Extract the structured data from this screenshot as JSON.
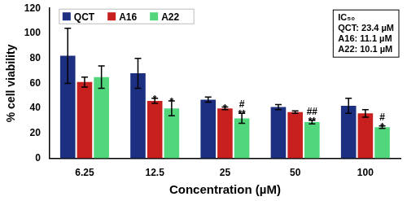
{
  "chart_data": {
    "type": "bar",
    "y_label": "% cell viability",
    "x_label": "Concentration (µM)",
    "categories": [
      "6.25",
      "12.5",
      "25",
      "50",
      "100"
    ],
    "series": [
      {
        "name": "QCT",
        "color": "#1c2f80",
        "values": [
          82,
          68,
          47,
          41,
          42
        ],
        "errors": [
          22,
          12,
          2,
          2,
          6
        ],
        "significance": [
          null,
          null,
          null,
          null,
          null
        ]
      },
      {
        "name": "A16",
        "color": "#c8201e",
        "values": [
          61,
          46,
          40,
          37,
          36
        ],
        "errors": [
          4,
          2,
          1,
          1,
          3
        ],
        "significance": [
          null,
          [
            "*"
          ],
          [
            "*"
          ],
          null,
          null
        ]
      },
      {
        "name": "A22",
        "color": "#52d67c",
        "values": [
          65,
          40,
          32,
          29,
          25
        ],
        "errors": [
          9,
          6,
          4,
          1.5,
          1
        ],
        "significance": [
          null,
          [
            "*"
          ],
          [
            "#",
            "**"
          ],
          [
            "##",
            "**"
          ],
          [
            "#",
            "*"
          ]
        ]
      }
    ],
    "inset": {
      "title": "IC₅₀",
      "lines": [
        "QCT: 23.4 µM",
        "A16: 11.1 µM",
        "A22: 10.1 µM"
      ]
    },
    "ylim": [
      0,
      120
    ],
    "yticks": [
      0,
      20,
      40,
      60,
      80,
      100,
      120
    ],
    "grid": false,
    "legend": "upper left"
  }
}
